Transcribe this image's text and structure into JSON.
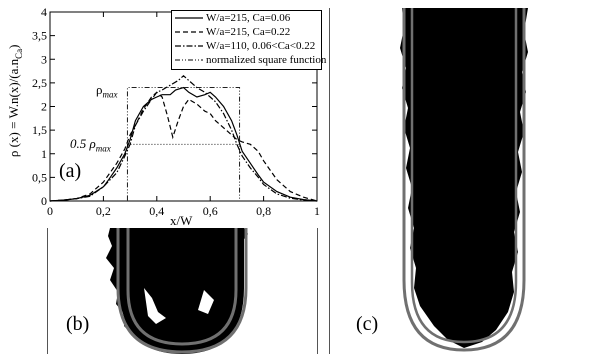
{
  "figure": {
    "panel_a": "(a)",
    "panel_b": "(b)",
    "panel_c": "(c)",
    "rho_max_label": "ρ",
    "rho_max_sub": "max",
    "half_rho_max_label": "0.5 ρ",
    "half_rho_max_sub": "max"
  },
  "chart_data": {
    "type": "line",
    "title": "",
    "xlabel": "x/W",
    "ylabel": "ρ (x) = W.n(x)/(a.n",
    "ylabel_sub": "Ca",
    "ylabel_close": ")",
    "xlim": [
      0,
      1
    ],
    "ylim": [
      0,
      4
    ],
    "x_ticks": [
      "0",
      "0,2",
      "0,4",
      "0,6",
      "0,8",
      "1"
    ],
    "y_ticks": [
      "0",
      "0,5",
      "1",
      "1,5",
      "2",
      "2,5",
      "3",
      "3,5",
      "4"
    ],
    "legend_position": "top-right",
    "series": [
      {
        "name": "W/a=215, Ca=0.06",
        "style": "solid",
        "x": [
          0,
          0.05,
          0.1,
          0.15,
          0.2,
          0.22,
          0.25,
          0.28,
          0.3,
          0.32,
          0.35,
          0.38,
          0.4,
          0.42,
          0.45,
          0.47,
          0.5,
          0.52,
          0.55,
          0.58,
          0.6,
          0.62,
          0.65,
          0.68,
          0.7,
          0.72,
          0.75,
          0.78,
          0.8,
          0.85,
          0.9,
          0.95,
          1.0
        ],
        "y": [
          0,
          0.02,
          0.05,
          0.12,
          0.3,
          0.45,
          0.7,
          1.0,
          1.3,
          1.7,
          2.0,
          2.15,
          2.2,
          2.25,
          2.25,
          2.35,
          2.4,
          2.3,
          2.2,
          2.25,
          2.3,
          2.2,
          2.0,
          1.7,
          1.4,
          1.05,
          0.8,
          0.55,
          0.4,
          0.2,
          0.08,
          0.03,
          0
        ]
      },
      {
        "name": "W/a=215, Ca=0.22",
        "style": "dashed",
        "x": [
          0,
          0.05,
          0.1,
          0.15,
          0.2,
          0.25,
          0.28,
          0.3,
          0.32,
          0.35,
          0.38,
          0.4,
          0.42,
          0.44,
          0.46,
          0.48,
          0.5,
          0.52,
          0.55,
          0.58,
          0.6,
          0.62,
          0.65,
          0.68,
          0.7,
          0.72,
          0.75,
          0.78,
          0.8,
          0.85,
          0.9,
          0.95,
          1.0
        ],
        "y": [
          0,
          0.02,
          0.05,
          0.15,
          0.4,
          0.8,
          1.1,
          1.4,
          1.6,
          1.95,
          2.2,
          2.3,
          2.2,
          1.8,
          1.35,
          1.7,
          2.0,
          2.15,
          2.05,
          1.9,
          1.85,
          1.7,
          1.55,
          1.4,
          1.3,
          1.25,
          1.2,
          1.05,
          0.85,
          0.45,
          0.2,
          0.08,
          0
        ]
      },
      {
        "name": "W/a=110, 0.06<Ca<0.22",
        "style": "dash-dot",
        "x": [
          0,
          0.05,
          0.1,
          0.15,
          0.2,
          0.25,
          0.28,
          0.3,
          0.32,
          0.35,
          0.38,
          0.4,
          0.42,
          0.45,
          0.48,
          0.5,
          0.52,
          0.55,
          0.58,
          0.6,
          0.62,
          0.65,
          0.68,
          0.7,
          0.72,
          0.75,
          0.78,
          0.8,
          0.85,
          0.9,
          0.95,
          1.0
        ],
        "y": [
          0,
          0.02,
          0.05,
          0.1,
          0.3,
          0.6,
          0.95,
          1.2,
          1.6,
          1.9,
          2.15,
          2.3,
          2.35,
          2.45,
          2.55,
          2.65,
          2.55,
          2.4,
          2.3,
          2.2,
          2.1,
          1.85,
          1.5,
          1.2,
          0.95,
          0.7,
          0.5,
          0.35,
          0.15,
          0.06,
          0.02,
          0
        ]
      },
      {
        "name": "normalized square function",
        "style": "dash-dot-dot",
        "x": [
          0,
          0.29,
          0.29,
          0.71,
          0.71,
          1.0
        ],
        "y": [
          0,
          0,
          2.4,
          2.4,
          0,
          0
        ]
      }
    ],
    "reference_lines": [
      {
        "y": 1.2,
        "x0": 0.29,
        "x1": 0.71,
        "style": "dotted"
      }
    ]
  }
}
